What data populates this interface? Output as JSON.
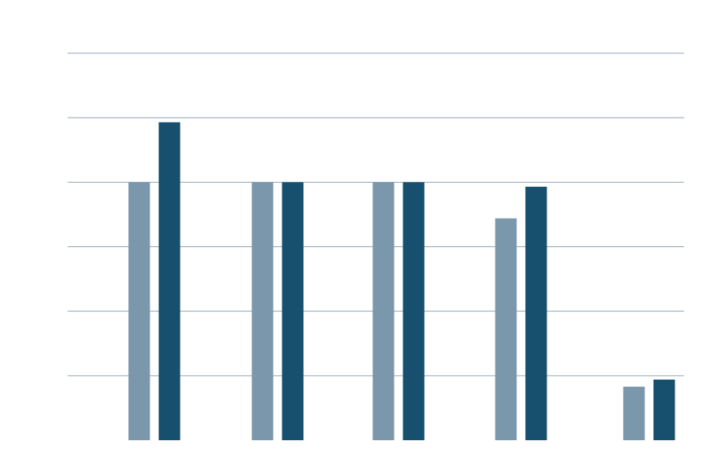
{
  "chart_data": {
    "type": "bar",
    "title": "",
    "xlabel": "",
    "ylabel": "",
    "categories": [
      "",
      "",
      "",
      "",
      ""
    ],
    "ylim": [
      0,
      6
    ],
    "gridlines": [
      1,
      2,
      3,
      4,
      5,
      6
    ],
    "grid": true,
    "legend": "none",
    "series": [
      {
        "color": "#7b97ac",
        "values": [
          4.0,
          4.0,
          4.0,
          3.44,
          0.83
        ]
      },
      {
        "color": "#16506e",
        "values": [
          4.93,
          4.0,
          4.0,
          3.93,
          0.94
        ]
      }
    ],
    "colors": {
      "grid": "#8ea4b8",
      "background": "#ffffff"
    }
  }
}
